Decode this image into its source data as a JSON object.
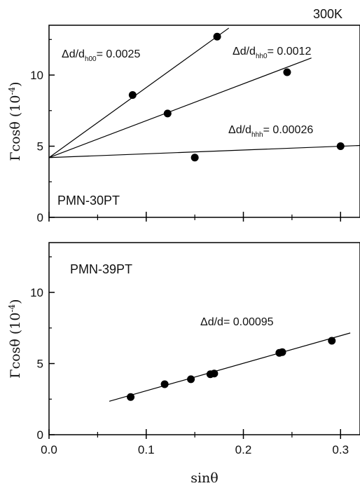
{
  "temperature_label": "300K",
  "chart_data": [
    {
      "type": "scatter",
      "panel_label": "PMN-30PT",
      "xlabel": "sinθ",
      "ylabel": "Γcosθ (10⁻⁴)",
      "ylabel_main": "Γcosθ (10",
      "ylabel_exp": "-4",
      "ylabel_end": ")",
      "xlim": [
        0.0,
        0.32
      ],
      "ylim": [
        0,
        13.5
      ],
      "x_ticks": [
        "0.0",
        "0.1",
        "0.2",
        "0.3"
      ],
      "y_ticks": [
        "0",
        "5",
        "10"
      ],
      "series": [
        {
          "points": [
            [
              0.086,
              8.6
            ],
            [
              0.173,
              12.7
            ]
          ],
          "fit_line": {
            "x": [
              0.0,
              0.185
            ],
            "y": [
              4.2,
              13.3
            ]
          },
          "annotation": {
            "prefix": "Δd/d",
            "sub": "h00",
            "suffix": "= 0.0025"
          }
        },
        {
          "points": [
            [
              0.122,
              7.3
            ],
            [
              0.245,
              10.2
            ]
          ],
          "fit_line": {
            "x": [
              0.0,
              0.27
            ],
            "y": [
              4.2,
              11.2
            ]
          },
          "annotation": {
            "prefix": "Δd/d",
            "sub": "hh0",
            "suffix": "= 0.0012"
          }
        },
        {
          "points": [
            [
              0.15,
              4.2
            ],
            [
              0.3,
              5.0
            ]
          ],
          "fit_line": {
            "x": [
              0.0,
              0.32
            ],
            "y": [
              4.2,
              5.05
            ]
          },
          "annotation": {
            "prefix": "Δd/d",
            "sub": "hhh",
            "suffix": "= 0.00026"
          }
        }
      ]
    },
    {
      "type": "scatter",
      "panel_label": "PMN-39PT",
      "xlabel": "sinθ",
      "ylabel": "Γcosθ (10⁻⁴)",
      "ylabel_main": "Γcosθ (10",
      "ylabel_exp": "-4",
      "ylabel_end": ")",
      "xlim": [
        0.0,
        0.32
      ],
      "ylim": [
        0,
        13.5
      ],
      "x_ticks": [
        "0.0",
        "0.1",
        "0.2",
        "0.3"
      ],
      "y_ticks": [
        "0",
        "5",
        "10"
      ],
      "series": [
        {
          "points": [
            [
              0.084,
              2.65
            ],
            [
              0.119,
              3.55
            ],
            [
              0.146,
              3.9
            ],
            [
              0.166,
              4.25
            ],
            [
              0.17,
              4.3
            ],
            [
              0.237,
              5.75
            ],
            [
              0.24,
              5.8
            ],
            [
              0.291,
              6.6
            ]
          ],
          "fit_line": {
            "x": [
              0.062,
              0.31
            ],
            "y": [
              2.35,
              7.15
            ]
          },
          "annotation": {
            "prefix": "Δd/d",
            "sub": "",
            "suffix": "= 0.00095"
          }
        }
      ]
    }
  ]
}
